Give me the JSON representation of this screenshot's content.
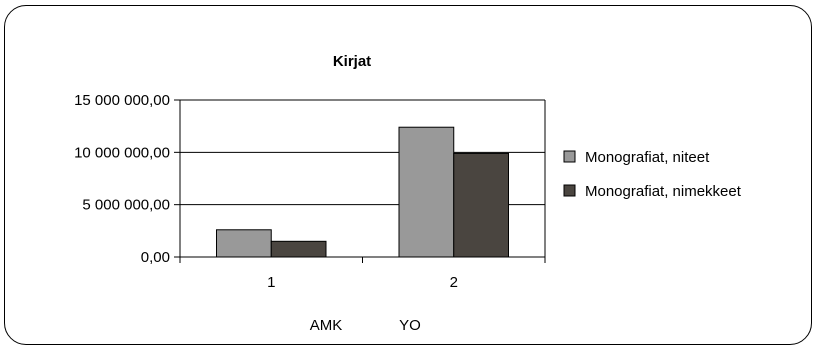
{
  "chart_data": {
    "type": "bar",
    "title": "Kirjat",
    "categories": [
      "1",
      "2"
    ],
    "category_notes": [
      "AMK",
      "YO"
    ],
    "series": [
      {
        "name": "Monografiat, niteet",
        "color": "#999999",
        "values": [
          2600000,
          12400000
        ]
      },
      {
        "name": "Monografiat, nimekkeet",
        "color": "#4a4540",
        "values": [
          1500000,
          9900000
        ]
      }
    ],
    "ylim": [
      0,
      15000000
    ],
    "yticks": [
      0,
      5000000,
      10000000,
      15000000
    ],
    "ytick_labels": [
      "0,00",
      "5 000 000,00",
      "10 000 000,00",
      "15 000 000,00"
    ],
    "grid": true,
    "legend_position": "right"
  }
}
